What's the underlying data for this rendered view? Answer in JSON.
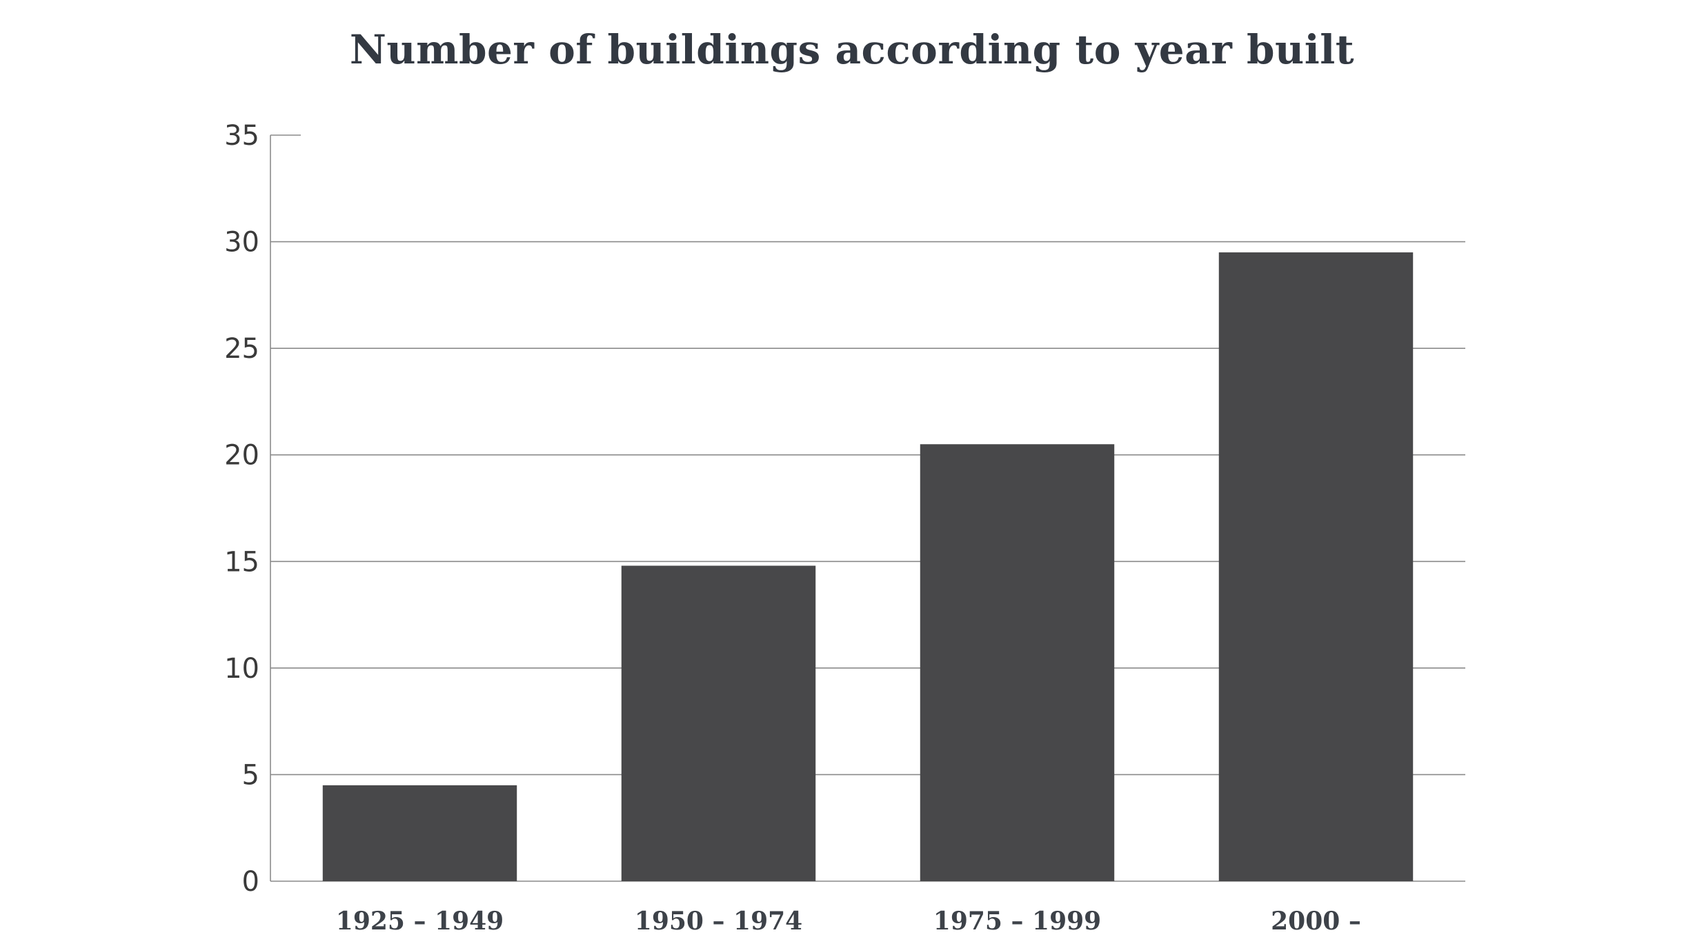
{
  "chart_data": {
    "type": "bar",
    "title": "Number of buildings according to year built",
    "xlabel": "",
    "ylabel": "",
    "categories": [
      "1925 – 1949",
      "1950 – 1974",
      "1975 – 1999",
      "2000 –"
    ],
    "values": [
      4.5,
      14.8,
      20.5,
      29.5
    ],
    "ylim": [
      0,
      35
    ],
    "yticks": [
      0,
      5,
      10,
      15,
      20,
      25,
      30,
      35
    ],
    "grid": true,
    "legend": "none",
    "colors": {
      "bar": "#48484a",
      "grid": "#8a8a8a",
      "title": "#333942"
    }
  }
}
